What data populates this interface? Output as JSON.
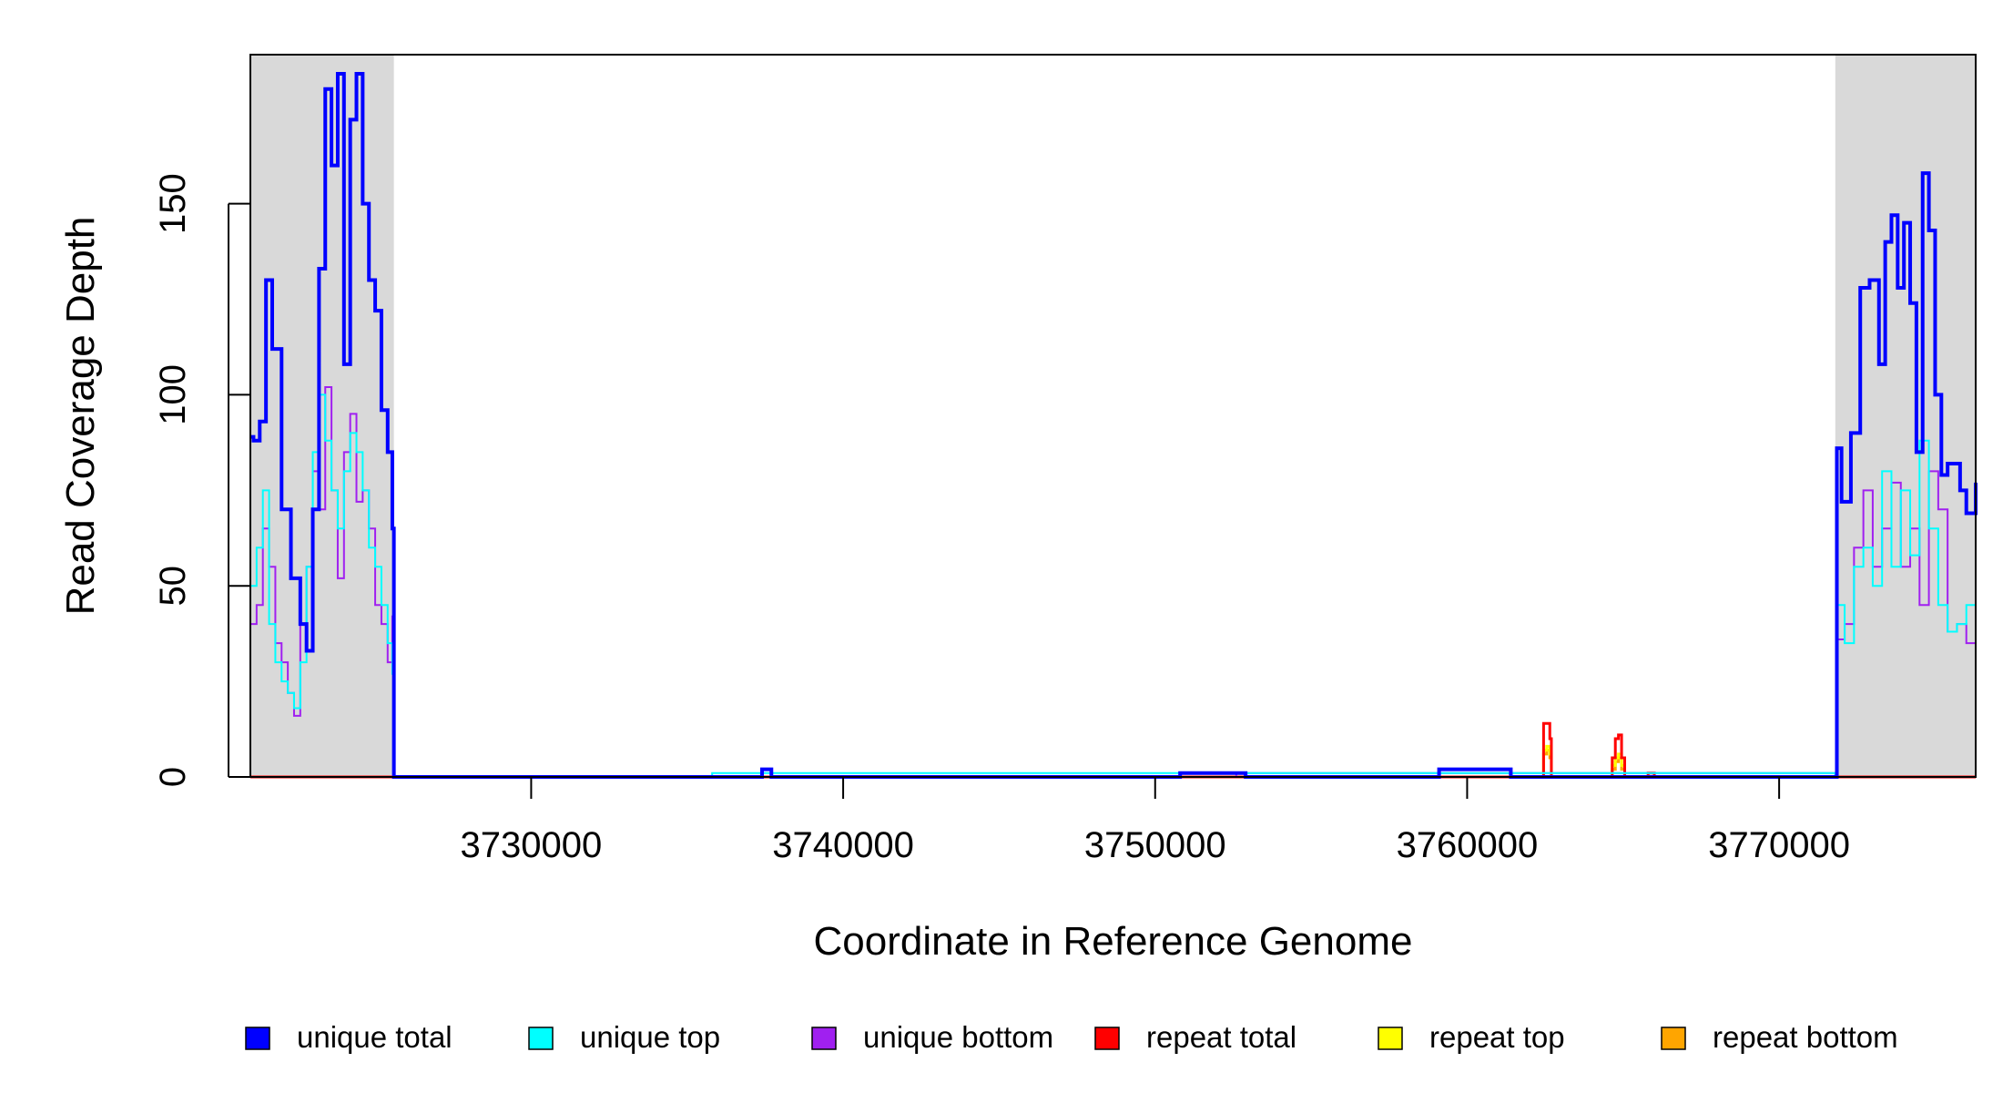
{
  "chart_data": {
    "type": "line",
    "title": "",
    "xlabel": "Coordinate in Reference Genome",
    "ylabel": "Read Coverage Depth",
    "xlim": [
      3721000,
      3776300
    ],
    "ylim": [
      0,
      189
    ],
    "x_ticks": [
      3730000,
      3740000,
      3750000,
      3760000,
      3770000
    ],
    "y_ticks": [
      0,
      50,
      100,
      150
    ],
    "grid": false,
    "legend_position": "bottom",
    "shaded_regions": [
      {
        "from": 3721000,
        "to": 3725600,
        "color": "#d9d9d9"
      },
      {
        "from": 3771800,
        "to": 3776300,
        "color": "#d9d9d9"
      }
    ],
    "series": [
      {
        "name": "unique total",
        "color": "#0000ff",
        "width": 4,
        "x": [
          3721000,
          3721100,
          3721300,
          3721500,
          3721700,
          3722000,
          3722300,
          3722600,
          3722800,
          3723000,
          3723200,
          3723400,
          3723600,
          3723800,
          3724000,
          3724200,
          3724400,
          3724600,
          3724800,
          3725000,
          3725200,
          3725400,
          3725550,
          3725600,
          3735500,
          3735800,
          3737400,
          3737700,
          3750500,
          3750800,
          3752600,
          3752900,
          3758800,
          3759100,
          3761100,
          3761400,
          3771800,
          3771850,
          3772000,
          3772300,
          3772600,
          3772900,
          3773200,
          3773400,
          3773600,
          3773800,
          3774000,
          3774200,
          3774400,
          3774600,
          3774800,
          3775000,
          3775200,
          3775400,
          3775600,
          3775800,
          3776000,
          3776300
        ],
        "values": [
          89,
          88,
          93,
          130,
          112,
          70,
          52,
          40,
          33,
          70,
          133,
          180,
          160,
          184,
          108,
          172,
          184,
          150,
          130,
          122,
          96,
          85,
          65,
          0,
          0,
          0,
          2,
          0,
          0,
          1,
          1,
          0,
          0,
          2,
          2,
          0,
          0,
          86,
          72,
          90,
          128,
          130,
          108,
          140,
          147,
          128,
          145,
          124,
          85,
          158,
          143,
          100,
          79,
          82,
          82,
          75,
          69,
          77
        ]
      },
      {
        "name": "unique top",
        "color": "#00ffff",
        "width": 2,
        "x": [
          3721000,
          3721200,
          3721400,
          3721600,
          3721800,
          3722000,
          3722200,
          3722400,
          3722600,
          3722800,
          3723000,
          3723200,
          3723400,
          3723600,
          3723800,
          3724000,
          3724200,
          3724400,
          3724600,
          3724800,
          3725000,
          3725200,
          3725400,
          3725550,
          3725600,
          3735500,
          3735800,
          3771800,
          3771850,
          3772100,
          3772400,
          3772700,
          3773000,
          3773300,
          3773600,
          3773900,
          3774200,
          3774500,
          3774800,
          3775100,
          3775400,
          3775700,
          3776000,
          3776300
        ],
        "values": [
          50,
          60,
          75,
          40,
          30,
          25,
          22,
          18,
          30,
          55,
          85,
          100,
          88,
          75,
          65,
          80,
          90,
          85,
          75,
          60,
          55,
          45,
          35,
          27,
          0,
          0,
          1,
          0,
          45,
          35,
          55,
          60,
          50,
          80,
          55,
          75,
          58,
          88,
          65,
          45,
          38,
          40,
          45,
          48
        ]
      },
      {
        "name": "unique bottom",
        "color": "#a020f0",
        "width": 2,
        "x": [
          3721000,
          3721200,
          3721400,
          3721600,
          3721800,
          3722000,
          3722200,
          3722400,
          3722600,
          3722800,
          3723000,
          3723200,
          3723400,
          3723600,
          3723800,
          3724000,
          3724200,
          3724400,
          3724600,
          3724800,
          3725000,
          3725200,
          3725400,
          3725550,
          3725600,
          3750500,
          3750800,
          3752600,
          3752900,
          3771800,
          3771850,
          3772100,
          3772400,
          3772700,
          3773000,
          3773300,
          3773600,
          3773900,
          3774200,
          3774500,
          3774800,
          3775100,
          3775400,
          3775700,
          3776000,
          3776300
        ],
        "values": [
          40,
          45,
          65,
          55,
          35,
          30,
          22,
          16,
          40,
          55,
          80,
          70,
          102,
          75,
          52,
          85,
          95,
          72,
          75,
          65,
          45,
          40,
          30,
          42,
          0,
          0,
          1,
          0,
          1,
          0,
          36,
          40,
          60,
          75,
          55,
          65,
          77,
          55,
          65,
          45,
          80,
          70,
          38,
          40,
          35,
          28
        ]
      },
      {
        "name": "repeat total",
        "color": "#ff0000",
        "width": 3,
        "x": [
          3721000,
          3762400,
          3762450,
          3762550,
          3762650,
          3762700,
          3764600,
          3764650,
          3764750,
          3764850,
          3764950,
          3765050,
          3765750,
          3765800,
          3765950,
          3766000,
          3776300
        ],
        "values": [
          0,
          0,
          14,
          14,
          10,
          0,
          0,
          5,
          10,
          11,
          5,
          0,
          0,
          1,
          1,
          0,
          0
        ]
      },
      {
        "name": "repeat top",
        "color": "#ffff00",
        "width": 3,
        "x": [
          3721000,
          3762400,
          3762450,
          3762550,
          3762650,
          3762700,
          3764600,
          3764650,
          3764750,
          3764850,
          3764950,
          3765050,
          3776300
        ],
        "values": [
          0,
          0,
          7,
          8,
          6,
          0,
          0,
          3,
          5,
          6,
          3,
          0,
          0
        ]
      },
      {
        "name": "repeat bottom",
        "color": "#ffa500",
        "width": 3,
        "x": [
          3721000,
          3762400,
          3762450,
          3762550,
          3762650,
          3762700,
          3764600,
          3764650,
          3764750,
          3764850,
          3764950,
          3765050,
          3776300
        ],
        "values": [
          0,
          0,
          6,
          7,
          5,
          0,
          0,
          2,
          4,
          5,
          2,
          0,
          0
        ]
      }
    ]
  },
  "legend": [
    {
      "label": "unique total",
      "color": "#0000ff"
    },
    {
      "label": "unique top",
      "color": "#00ffff"
    },
    {
      "label": "unique bottom",
      "color": "#a020f0"
    },
    {
      "label": "repeat total",
      "color": "#ff0000"
    },
    {
      "label": "repeat top",
      "color": "#ffff00"
    },
    {
      "label": "repeat bottom",
      "color": "#ffa500"
    }
  ]
}
